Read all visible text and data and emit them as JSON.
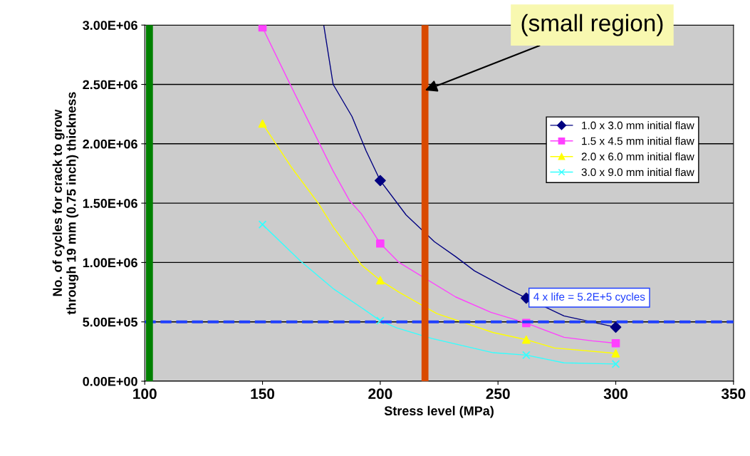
{
  "chart_data": {
    "type": "line",
    "xlabel": "Stress level (MPa)",
    "ylabel": "No. of cycles for crack to grow\nthrough 19 mm (0.75 inch) thickness",
    "xlim": [
      100,
      350
    ],
    "xticks": [
      100,
      150,
      200,
      250,
      300,
      350
    ],
    "ylim": [
      0,
      3000000
    ],
    "yticks": [
      {
        "value": 0,
        "label": "0.00E+00"
      },
      {
        "value": 500000,
        "label": "5.00E+05"
      },
      {
        "value": 1000000,
        "label": "1.00E+06"
      },
      {
        "value": 1500000,
        "label": "1.50E+06"
      },
      {
        "value": 2000000,
        "label": "2.00E+06"
      },
      {
        "value": 2500000,
        "label": "2.50E+06"
      },
      {
        "value": 3000000,
        "label": "3.00E+06"
      }
    ],
    "grid": "y",
    "legend": "right",
    "line_style": "solid",
    "series": [
      {
        "color": "#000080",
        "x": [
          176,
          180,
          188,
          194,
          200,
          211,
          223,
          232,
          240,
          254,
          262,
          278,
          300
        ],
        "values": [
          3000000,
          2500000,
          2230000,
          1940000,
          1690000,
          1400000,
          1175000,
          1050000,
          930000,
          780000,
          700000,
          550000,
          455000
        ]
      },
      {
        "color": "#ff40ff",
        "x": [
          150,
          162,
          174,
          180,
          187,
          192,
          200,
          208,
          232,
          247,
          262,
          278,
          290,
          300
        ],
        "values": [
          2980000,
          2490000,
          2010000,
          1770000,
          1520000,
          1410000,
          1160000,
          1000000,
          710000,
          580000,
          490000,
          370000,
          340000,
          320000
        ]
      },
      {
        "color": "#ffff00",
        "x": [
          150,
          162,
          174,
          180,
          192,
          200,
          208,
          224,
          248,
          262,
          274,
          300
        ],
        "values": [
          2170000,
          1810000,
          1490000,
          1300000,
          980000,
          850000,
          750000,
          570000,
          410000,
          350000,
          280000,
          235000
        ]
      },
      {
        "color": "#33ffff",
        "x": [
          150,
          166,
          180,
          192,
          200,
          207,
          222,
          248,
          262,
          278,
          300
        ],
        "values": [
          1320000,
          1015000,
          780000,
          620000,
          510000,
          450000,
          360000,
          240000,
          220000,
          155000,
          145000
        ]
      },
      {
        "type": "scatter",
        "name": "1.0 x 3.0 mm initial flaw",
        "color": "#000080",
        "marker": "diamond",
        "x": [
          200,
          262,
          300
        ],
        "values": [
          1690000,
          700000,
          455000
        ]
      },
      {
        "type": "scatter",
        "name": "1.5 x 4.5 mm initial flaw",
        "color": "#ff40ff",
        "marker": "square",
        "x": [
          150,
          200,
          262,
          300
        ],
        "values": [
          2980000,
          1160000,
          490000,
          320000
        ]
      },
      {
        "type": "scatter",
        "name": "2.0 x 6.0 mm initial flaw",
        "color": "#ffff00",
        "marker": "triangle",
        "x": [
          150,
          200,
          262,
          300
        ],
        "values": [
          2170000,
          850000,
          350000,
          235000
        ]
      },
      {
        "type": "scatter",
        "name": "3.0 x 9.0 mm initial flaw",
        "color": "#33ffff",
        "marker": "cross",
        "x": [
          150,
          200,
          262,
          300
        ],
        "values": [
          1320000,
          510000,
          220000,
          145000
        ]
      }
    ],
    "ref_lines": [
      {
        "axis": "y",
        "value": 500000,
        "color": "#1f3fff",
        "line_style": "dashed"
      },
      {
        "axis": "x",
        "value": 102,
        "color": "#008000",
        "line_style": "solid"
      },
      {
        "axis": "x",
        "value": 219,
        "color": "#d94a00",
        "line_style": "solid"
      }
    ],
    "annotations": [
      {
        "text": "(small region)",
        "x": 219,
        "y": 2450000
      },
      {
        "text": "4 x life = 5.2E+5 cycles",
        "x": 262,
        "y": 500000
      }
    ]
  }
}
